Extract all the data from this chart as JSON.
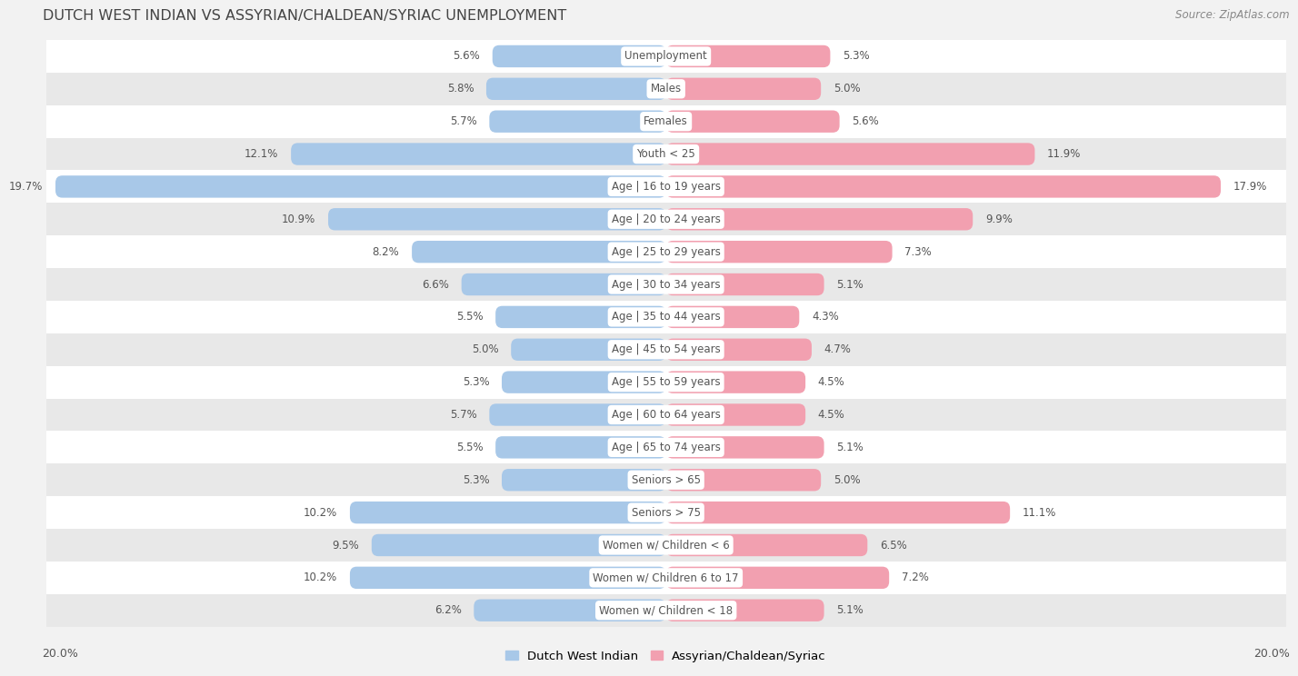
{
  "title": "DUTCH WEST INDIAN VS ASSYRIAN/CHALDEAN/SYRIAC UNEMPLOYMENT",
  "source": "Source: ZipAtlas.com",
  "categories": [
    "Unemployment",
    "Males",
    "Females",
    "Youth < 25",
    "Age | 16 to 19 years",
    "Age | 20 to 24 years",
    "Age | 25 to 29 years",
    "Age | 30 to 34 years",
    "Age | 35 to 44 years",
    "Age | 45 to 54 years",
    "Age | 55 to 59 years",
    "Age | 60 to 64 years",
    "Age | 65 to 74 years",
    "Seniors > 65",
    "Seniors > 75",
    "Women w/ Children < 6",
    "Women w/ Children 6 to 17",
    "Women w/ Children < 18"
  ],
  "left_values": [
    5.6,
    5.8,
    5.7,
    12.1,
    19.7,
    10.9,
    8.2,
    6.6,
    5.5,
    5.0,
    5.3,
    5.7,
    5.5,
    5.3,
    10.2,
    9.5,
    10.2,
    6.2
  ],
  "right_values": [
    5.3,
    5.0,
    5.6,
    11.9,
    17.9,
    9.9,
    7.3,
    5.1,
    4.3,
    4.7,
    4.5,
    4.5,
    5.1,
    5.0,
    11.1,
    6.5,
    7.2,
    5.1
  ],
  "left_color": "#A8C8E8",
  "right_color": "#F2A0B0",
  "left_label": "Dutch West Indian",
  "right_label": "Assyrian/Chaldean/Syriac",
  "axis_max": 20.0,
  "background_color": "#f2f2f2",
  "row_color_even": "#ffffff",
  "row_color_odd": "#e8e8e8",
  "text_color": "#555555",
  "title_color": "#444444",
  "label_bg_color": "#ffffff"
}
